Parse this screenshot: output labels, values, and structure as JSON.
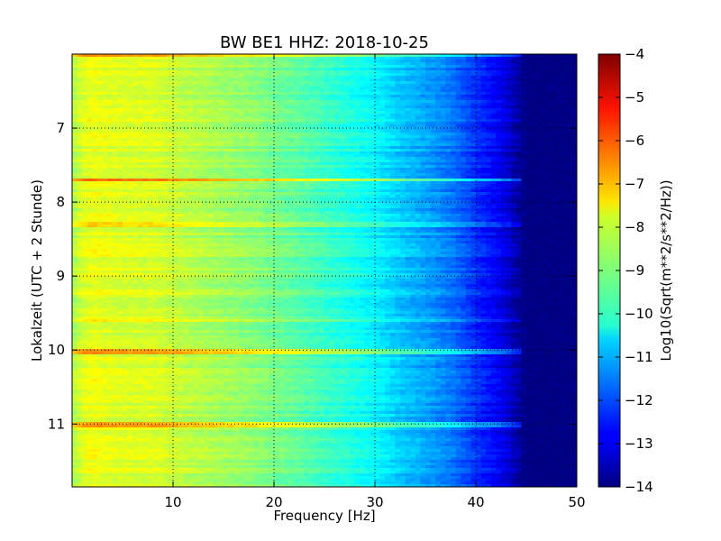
{
  "chart_data": {
    "type": "heatmap",
    "title": "BW BE1 HHZ: 2018-10-25",
    "xlabel": "Frequency [Hz]",
    "ylabel": "Lokalzeit (UTC + 2 Stunde)",
    "xlim": [
      0,
      50
    ],
    "ylim": [
      6.0,
      11.85
    ],
    "y_inverted": true,
    "x_ticks": [
      10,
      20,
      30,
      40,
      50
    ],
    "y_ticks": [
      7,
      8,
      9,
      10,
      11
    ],
    "grid": true,
    "colormap": "jet",
    "colorbar": {
      "label": "Log10(Sqrt(m**2/s**2/Hz))",
      "range": [
        -14,
        -4
      ],
      "ticks": [
        -4,
        -5,
        -6,
        -7,
        -8,
        -9,
        -10,
        -11,
        -12,
        -13,
        -14
      ]
    },
    "frequency_profile": {
      "x": [
        0,
        1,
        2,
        3,
        5,
        8,
        10,
        14,
        18,
        22,
        26,
        30,
        32,
        34,
        36,
        38,
        40,
        42,
        43,
        44,
        45,
        50
      ],
      "value": [
        -8.6,
        -8.1,
        -7.9,
        -8.0,
        -8.1,
        -8.1,
        -8.3,
        -8.6,
        -8.9,
        -9.3,
        -9.8,
        -10.3,
        -10.7,
        -11.0,
        -11.3,
        -11.7,
        -12.3,
        -12.8,
        -13.1,
        -13.6,
        -14.0,
        -14.0
      ]
    },
    "bright_time_bands": [
      {
        "time": 6.02,
        "strength": 1.2
      },
      {
        "time": 7.7,
        "strength": 1.5
      },
      {
        "time": 8.3,
        "strength": 0.5
      },
      {
        "time": 9.6,
        "strength": 0.6
      },
      {
        "time": 10.02,
        "strength": 1.5
      },
      {
        "time": 11.0,
        "strength": 1.4
      }
    ]
  }
}
